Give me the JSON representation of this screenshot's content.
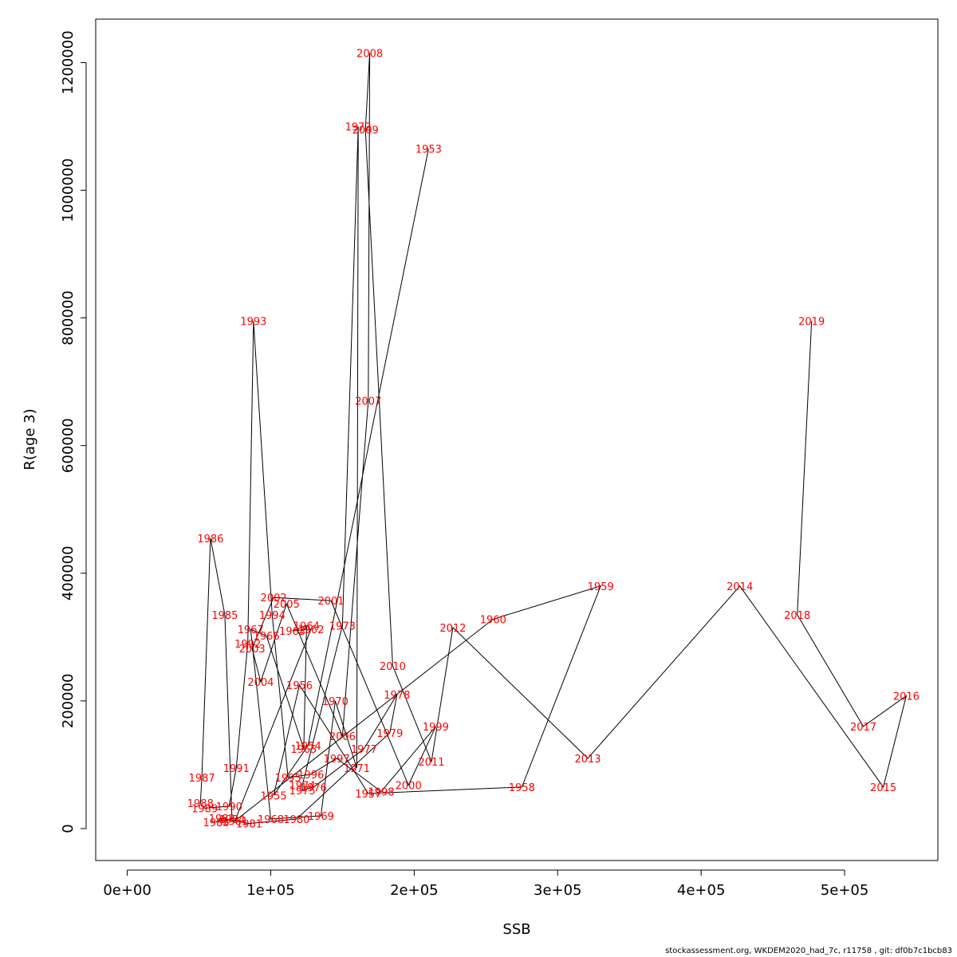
{
  "chart_data": {
    "type": "line",
    "title": "",
    "xlabel": "SSB",
    "ylabel": "R(age 3)",
    "xlim": [
      -22000,
      565000
    ],
    "ylim": [
      -50000,
      1268000
    ],
    "x_ticks": [
      0,
      100000,
      200000,
      300000,
      400000,
      500000
    ],
    "x_tick_labels": [
      "0e+00",
      "1e+05",
      "2e+05",
      "3e+05",
      "4e+05",
      "5e+05"
    ],
    "y_ticks": [
      0,
      200000,
      400000,
      600000,
      800000,
      1000000,
      1200000
    ],
    "y_tick_labels": [
      "0",
      "200000",
      "400000",
      "600000",
      "800000",
      "1000000",
      "1200000"
    ],
    "grid": false,
    "legend": "none",
    "line_color": "#000000",
    "label_color": "#ff0000",
    "series": [
      {
        "points": [
          {
            "year": "1953",
            "x": 210000,
            "y": 1065000
          },
          {
            "year": "1954",
            "x": 126000,
            "y": 130000
          },
          {
            "year": "1955",
            "x": 102000,
            "y": 52000
          },
          {
            "year": "1956",
            "x": 120000,
            "y": 225000
          },
          {
            "year": "1957",
            "x": 168000,
            "y": 55000
          },
          {
            "year": "1958",
            "x": 275000,
            "y": 65000
          },
          {
            "year": "1959",
            "x": 330000,
            "y": 380000
          },
          {
            "year": "1960",
            "x": 255000,
            "y": 328000
          },
          {
            "year": "1961",
            "x": 75000,
            "y": 12000
          },
          {
            "year": "1962",
            "x": 128000,
            "y": 312000
          },
          {
            "year": "1963",
            "x": 115000,
            "y": 310000
          },
          {
            "year": "1964",
            "x": 125000,
            "y": 318000
          },
          {
            "year": "1965",
            "x": 123000,
            "y": 125000
          },
          {
            "year": "1966",
            "x": 97000,
            "y": 302000
          },
          {
            "year": "1967",
            "x": 86000,
            "y": 312000
          },
          {
            "year": "1968",
            "x": 100000,
            "y": 15000
          },
          {
            "year": "1969",
            "x": 135000,
            "y": 20000
          },
          {
            "year": "1970",
            "x": 145000,
            "y": 200000
          },
          {
            "year": "1971",
            "x": 160000,
            "y": 95000
          },
          {
            "year": "1972",
            "x": 161000,
            "y": 1100000
          },
          {
            "year": "1973",
            "x": 150000,
            "y": 318000
          },
          {
            "year": "1974",
            "x": 122000,
            "y": 68000
          },
          {
            "year": "1975",
            "x": 122000,
            "y": 60000
          },
          {
            "year": "1976",
            "x": 130000,
            "y": 65000
          },
          {
            "year": "1977",
            "x": 165000,
            "y": 125000
          },
          {
            "year": "1978",
            "x": 188000,
            "y": 210000
          },
          {
            "year": "1979",
            "x": 183000,
            "y": 150000
          },
          {
            "year": "1980",
            "x": 118000,
            "y": 15000
          },
          {
            "year": "1981",
            "x": 85000,
            "y": 8000
          },
          {
            "year": "1982",
            "x": 66000,
            "y": 16000
          },
          {
            "year": "1983",
            "x": 62000,
            "y": 10000
          },
          {
            "year": "1984",
            "x": 73000,
            "y": 15000
          },
          {
            "year": "1985",
            "x": 68000,
            "y": 335000
          },
          {
            "year": "1986",
            "x": 58000,
            "y": 455000
          },
          {
            "year": "1987",
            "x": 52000,
            "y": 80000
          },
          {
            "year": "1988",
            "x": 51000,
            "y": 40000
          },
          {
            "year": "1989",
            "x": 54000,
            "y": 32000
          },
          {
            "year": "1990",
            "x": 71000,
            "y": 35000
          },
          {
            "year": "1991",
            "x": 76000,
            "y": 95000
          },
          {
            "year": "1992",
            "x": 84000,
            "y": 290000
          },
          {
            "year": "1993",
            "x": 88000,
            "y": 795000
          },
          {
            "year": "1994",
            "x": 101000,
            "y": 335000
          },
          {
            "year": "1995",
            "x": 112000,
            "y": 80000
          },
          {
            "year": "1996",
            "x": 128000,
            "y": 85000
          },
          {
            "year": "1997",
            "x": 146000,
            "y": 110000
          },
          {
            "year": "1998",
            "x": 177000,
            "y": 58000
          },
          {
            "year": "1999",
            "x": 215000,
            "y": 160000
          },
          {
            "year": "2000",
            "x": 196000,
            "y": 68000
          },
          {
            "year": "2001",
            "x": 142000,
            "y": 357000
          },
          {
            "year": "2002",
            "x": 102000,
            "y": 362000
          },
          {
            "year": "2003",
            "x": 87000,
            "y": 282000
          },
          {
            "year": "2004",
            "x": 93000,
            "y": 230000
          },
          {
            "year": "2005",
            "x": 111000,
            "y": 352000
          },
          {
            "year": "2006",
            "x": 150000,
            "y": 145000
          },
          {
            "year": "2007",
            "x": 168000,
            "y": 670000
          },
          {
            "year": "2008",
            "x": 169000,
            "y": 1215000
          },
          {
            "year": "2009",
            "x": 166000,
            "y": 1095000
          },
          {
            "year": "2010",
            "x": 185000,
            "y": 255000
          },
          {
            "year": "2011",
            "x": 212000,
            "y": 105000
          },
          {
            "year": "2012",
            "x": 227000,
            "y": 315000
          },
          {
            "year": "2013",
            "x": 321000,
            "y": 110000
          },
          {
            "year": "2014",
            "x": 427000,
            "y": 380000
          },
          {
            "year": "2015",
            "x": 527000,
            "y": 65000
          },
          {
            "year": "2016",
            "x": 543000,
            "y": 208000
          },
          {
            "year": "2017",
            "x": 513000,
            "y": 160000
          },
          {
            "year": "2018",
            "x": 467000,
            "y": 335000
          },
          {
            "year": "2019",
            "x": 477000,
            "y": 795000
          }
        ]
      }
    ]
  },
  "footer": {
    "text": "stockassessment.org, WKDEM2020_had_7c, r11758 , git: df0b7c1bcb83"
  }
}
